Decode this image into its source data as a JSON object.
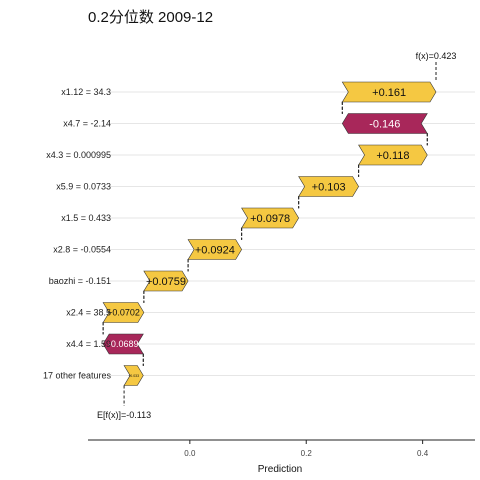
{
  "chart_data": {
    "type": "waterfall",
    "title": "0.2分位数 2009-12",
    "xlabel": "Prediction",
    "xlim": [
      -0.175,
      0.49
    ],
    "xticks": [
      0.0,
      0.2,
      0.4
    ],
    "tick_labels": [
      "0.0",
      "0.2",
      "0.4"
    ],
    "base_value": -0.113,
    "base_label": "E[f(x)]=-0.113",
    "final_value": 0.423,
    "final_label": "f(x)=0.423",
    "colors": {
      "positive": "#F5C842",
      "negative": "#A8275A"
    },
    "grid": true,
    "features": [
      {
        "label": "x1.12 = 34.3",
        "start": 0.262,
        "end": 0.423,
        "value": 0.161,
        "text": "+0.161"
      },
      {
        "label": "x4.7 = -2.14",
        "start": 0.408,
        "end": 0.262,
        "value": -0.146,
        "text": "-0.146"
      },
      {
        "label": "x4.3 = 0.000995",
        "start": 0.29,
        "end": 0.408,
        "value": 0.118,
        "text": "+0.118"
      },
      {
        "label": "x5.9 = 0.0733",
        "start": 0.187,
        "end": 0.29,
        "value": 0.103,
        "text": "+0.103"
      },
      {
        "label": "x1.5 = 0.433",
        "start": 0.089,
        "end": 0.187,
        "value": 0.0978,
        "text": "+0.0978"
      },
      {
        "label": "x2.8 = -0.0554",
        "start": -0.003,
        "end": 0.089,
        "value": 0.0924,
        "text": "+0.0924"
      },
      {
        "label": "baozhi = -0.151",
        "start": -0.079,
        "end": -0.003,
        "value": 0.0759,
        "text": "+0.0759"
      },
      {
        "label": "x2.4 = 38.5",
        "start": -0.149,
        "end": -0.079,
        "value": 0.0702,
        "text": "+0.0702"
      },
      {
        "label": "x4.4 = 1.59",
        "start": -0.08,
        "end": -0.149,
        "value": -0.0689,
        "text": "-0.0689"
      },
      {
        "label": "17 other features",
        "start": -0.113,
        "end": -0.08,
        "value": 0.033,
        "text": "+0.033"
      }
    ]
  }
}
